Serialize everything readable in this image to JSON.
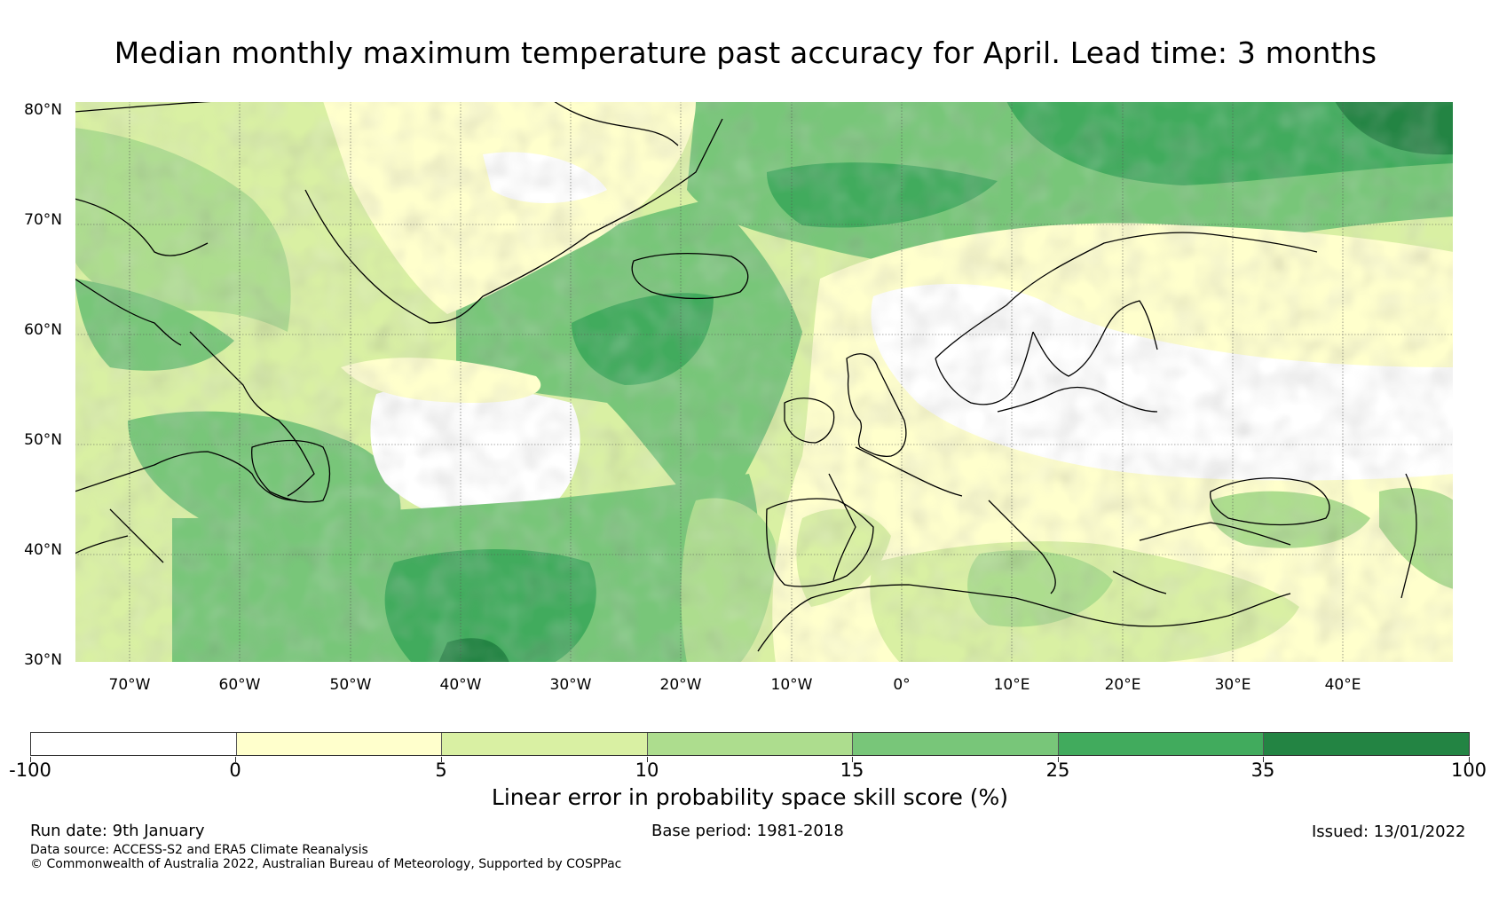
{
  "title": "Median monthly maximum temperature past accuracy for April. Lead time: 3 months",
  "map": {
    "lat_labels": [
      "80°N",
      "70°N",
      "60°N",
      "50°N",
      "40°N",
      "30°N"
    ],
    "lon_labels": [
      "70°W",
      "60°W",
      "50°W",
      "40°W",
      "30°W",
      "20°W",
      "10°W",
      "0°",
      "10°E",
      "20°E",
      "30°E",
      "40°E"
    ],
    "extent": {
      "lon_min": -75,
      "lon_max": 50,
      "lat_min": 30,
      "lat_max": 81
    }
  },
  "legend": {
    "label": "Linear error in probability space skill score (%)",
    "ticks": [
      "-100",
      "0",
      "5",
      "10",
      "15",
      "25",
      "35",
      "100"
    ],
    "colors": [
      "#ffffff",
      "#ffffcc",
      "#d9f0a3",
      "#addd8e",
      "#78c679",
      "#41ab5d",
      "#238443"
    ]
  },
  "footer": {
    "run_date": "Run date: 9th January",
    "base_period": "Base period: 1981-2018",
    "issued": "Issued: 13/01/2022",
    "data_source": "Data source: ACCESS-S2 and ERA5 Climate Reanalysis",
    "copyright": "© Commonwealth of Australia 2022, Australian Bureau of Meteorology, Supported by COSPPac"
  }
}
